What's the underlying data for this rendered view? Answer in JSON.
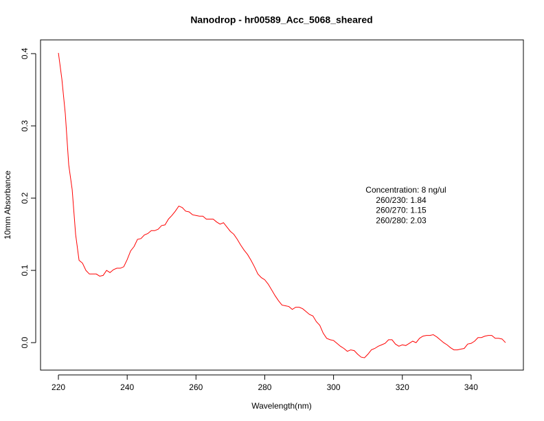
{
  "chart_data": {
    "type": "line",
    "title": "Nanodrop - hr00589_Acc_5068_sheared",
    "x_label": "Wavelength(nm)",
    "y_label": "10mm Absorbance",
    "annotation": [
      "Concentration: 8 ng/ul",
      "260/230: 1.84",
      "260/270: 1.15",
      "260/280: 2.03"
    ],
    "color": "#ff0000",
    "x": [
      220,
      221,
      222,
      223,
      224,
      225,
      226,
      227,
      228,
      229,
      230,
      231,
      232,
      233,
      234,
      235,
      236,
      237,
      238,
      239,
      240,
      241,
      242,
      243,
      244,
      245,
      246,
      247,
      248,
      249,
      250,
      251,
      252,
      253,
      254,
      255,
      256,
      257,
      258,
      259,
      260,
      261,
      262,
      263,
      264,
      265,
      266,
      267,
      268,
      269,
      270,
      271,
      272,
      273,
      274,
      275,
      276,
      277,
      278,
      279,
      280,
      281,
      282,
      283,
      284,
      285,
      286,
      287,
      288,
      289,
      290,
      291,
      292,
      293,
      294,
      295,
      296,
      297,
      298,
      299,
      300,
      301,
      302,
      303,
      304,
      305,
      306,
      307,
      308,
      309,
      310,
      311,
      312,
      313,
      314,
      315,
      316,
      317,
      318,
      319,
      320,
      321,
      322,
      323,
      324,
      325,
      326,
      327,
      328,
      329,
      330,
      331,
      332,
      333,
      334,
      335,
      336,
      337,
      338,
      339,
      340,
      341,
      342,
      343,
      344,
      345,
      346,
      347,
      348,
      349,
      350
    ],
    "values": [
      0.401,
      0.365,
      0.317,
      0.246,
      0.212,
      0.15,
      0.114,
      0.11,
      0.1,
      0.095,
      0.095,
      0.095,
      0.092,
      0.093,
      0.1,
      0.097,
      0.101,
      0.103,
      0.103,
      0.105,
      0.115,
      0.127,
      0.133,
      0.143,
      0.144,
      0.149,
      0.151,
      0.155,
      0.155,
      0.157,
      0.162,
      0.163,
      0.171,
      0.176,
      0.182,
      0.189,
      0.187,
      0.182,
      0.181,
      0.177,
      0.176,
      0.175,
      0.175,
      0.171,
      0.171,
      0.171,
      0.167,
      0.164,
      0.166,
      0.16,
      0.154,
      0.15,
      0.143,
      0.135,
      0.128,
      0.122,
      0.114,
      0.105,
      0.095,
      0.09,
      0.087,
      0.081,
      0.073,
      0.065,
      0.058,
      0.052,
      0.051,
      0.05,
      0.046,
      0.049,
      0.049,
      0.047,
      0.043,
      0.039,
      0.037,
      0.029,
      0.024,
      0.013,
      0.006,
      0.004,
      0.003,
      -0.001,
      -0.005,
      -0.008,
      -0.012,
      -0.01,
      -0.011,
      -0.016,
      -0.02,
      -0.021,
      -0.016,
      -0.01,
      -0.008,
      -0.005,
      -0.003,
      -0.001,
      0.004,
      0.004,
      -0.002,
      -0.005,
      -0.003,
      -0.004,
      -0.001,
      0.002,
      0.0,
      0.006,
      0.009,
      0.01,
      0.01,
      0.011,
      0.008,
      0.004,
      0.0,
      -0.003,
      -0.007,
      -0.01,
      -0.01,
      -0.009,
      -0.008,
      -0.002,
      -0.001,
      0.002,
      0.007,
      0.007,
      0.009,
      0.01,
      0.01,
      0.006,
      0.006,
      0.005,
      0.0
    ],
    "xlim": [
      214.8,
      355.2
    ],
    "ylim": [
      -0.038,
      0.419
    ],
    "xticks": [
      220,
      240,
      260,
      280,
      300,
      320,
      340
    ],
    "yticks": [
      {
        "value": 0,
        "label": "0.0"
      },
      0.1,
      0.2,
      0.3,
      0.4
    ]
  }
}
